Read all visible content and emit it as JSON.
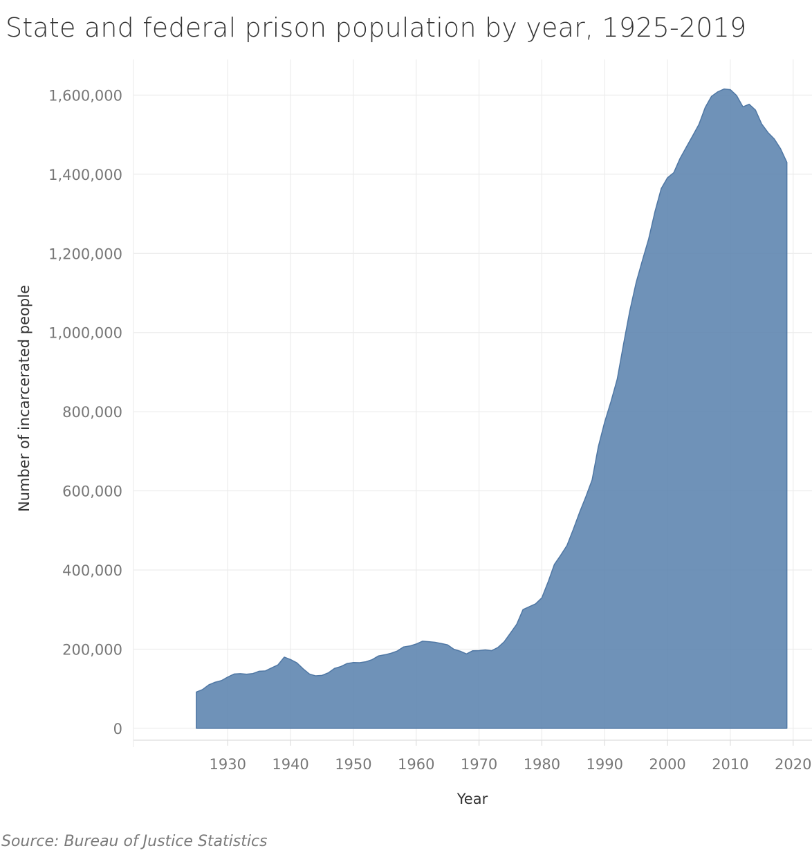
{
  "title": "State and federal prison population by year, 1925-2019",
  "source": "Source: Bureau of Justice Statistics",
  "colors": {
    "area": "#5b83ae",
    "grid": "#ececec"
  },
  "chart_data": {
    "type": "area",
    "title": "State and federal prison population by year, 1925-2019",
    "xlabel": "Year",
    "ylabel": "Number of incarcerated people",
    "xlim": [
      1915,
      2023
    ],
    "ylim": [
      -30000,
      1690000
    ],
    "x_ticks": [
      1930,
      1940,
      1950,
      1960,
      1970,
      1980,
      1990,
      2000,
      2010,
      2020
    ],
    "x_tick_labels": [
      "1930",
      "1940",
      "1950",
      "1960",
      "1970",
      "1980",
      "1990",
      "2000",
      "2010",
      "2020"
    ],
    "y_ticks": [
      0,
      200000,
      400000,
      600000,
      800000,
      1000000,
      1200000,
      1400000,
      1600000
    ],
    "y_tick_labels": [
      "0",
      "200,000",
      "400,000",
      "600,000",
      "800,000",
      "1,000,000",
      "1,200,000",
      "1,400,000",
      "1,600,000"
    ],
    "grid": true,
    "series": [
      {
        "x": [
          1925,
          1926,
          1927,
          1928,
          1929,
          1930,
          1931,
          1932,
          1933,
          1934,
          1935,
          1936,
          1937,
          1938,
          1939,
          1940,
          1941,
          1942,
          1943,
          1944,
          1945,
          1946,
          1947,
          1948,
          1949,
          1950,
          1951,
          1952,
          1953,
          1954,
          1955,
          1956,
          1957,
          1958,
          1959,
          1960,
          1961,
          1962,
          1963,
          1964,
          1965,
          1966,
          1967,
          1968,
          1969,
          1970,
          1971,
          1972,
          1973,
          1974,
          1975,
          1976,
          1977,
          1978,
          1979,
          1980,
          1981,
          1982,
          1983,
          1984,
          1985,
          1986,
          1987,
          1988,
          1989,
          1990,
          1991,
          1992,
          1993,
          1994,
          1995,
          1996,
          1997,
          1998,
          1999,
          2000,
          2001,
          2002,
          2003,
          2004,
          2005,
          2006,
          2007,
          2008,
          2009,
          2010,
          2011,
          2012,
          2013,
          2014,
          2015,
          2016,
          2017,
          2018,
          2019
        ],
        "values": [
          91669,
          97991,
          109983,
          116390,
          120496,
          129453,
          137082,
          137997,
          136810,
          138316,
          144180,
          145038,
          152741,
          160285,
          179818,
          173706,
          165439,
          150384,
          137220,
          132456,
          133649,
          140079,
          151304,
          155977,
          163749,
          166123,
          165680,
          168233,
          173579,
          182901,
          185780,
          189565,
          195414,
          205643,
          208105,
          212953,
          220149,
          218830,
          217283,
          214336,
          210895,
          199654,
          194896,
          187914,
          196007,
          196429,
          198061,
          196092,
          204211,
          218466,
          240593,
          262833,
          300024,
          307276,
          314457,
          329821,
          369930,
          414362,
          437248,
          462002,
          502507,
          545378,
          585084,
          627600,
          712364,
          773919,
          825559,
          882500,
          970444,
          1054702,
          1125874,
          1182169,
          1236476,
          1305253,
          1363701,
          1391261,
          1404032,
          1440144,
          1468601,
          1497100,
          1525910,
          1568674,
          1596835,
          1608282,
          1615487,
          1613803,
          1598968,
          1570397,
          1576950,
          1562319,
          1526792,
          1505397,
          1489189,
          1464385,
          1430165
        ]
      }
    ]
  }
}
